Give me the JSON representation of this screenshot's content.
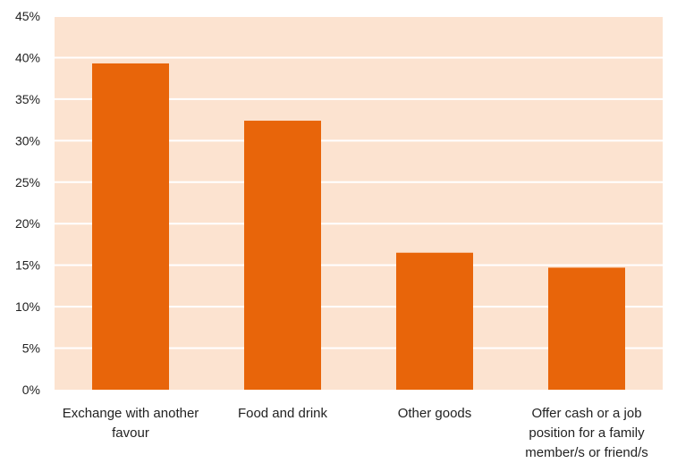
{
  "colors": {
    "plot_background": "#FCE3D0",
    "bar": "#E8650A",
    "gridline": "#FFFFFF",
    "text": "#222222"
  },
  "chart_data": {
    "type": "bar",
    "title": "",
    "xlabel": "",
    "ylabel": "",
    "categories": [
      [
        "Exchange with another",
        "favour"
      ],
      [
        "Food and drink"
      ],
      [
        "Other goods"
      ],
      [
        "Offer cash or a job",
        "position for a family",
        "member/s or friend/s"
      ]
    ],
    "values": [
      0.393,
      0.324,
      0.165,
      0.147
    ],
    "ylim": [
      0,
      0.45
    ],
    "yticks": [
      "0%",
      "5%",
      "10%",
      "15%",
      "20%",
      "25%",
      "30%",
      "35%",
      "40%",
      "45%"
    ],
    "grid": true,
    "legend": "none"
  }
}
